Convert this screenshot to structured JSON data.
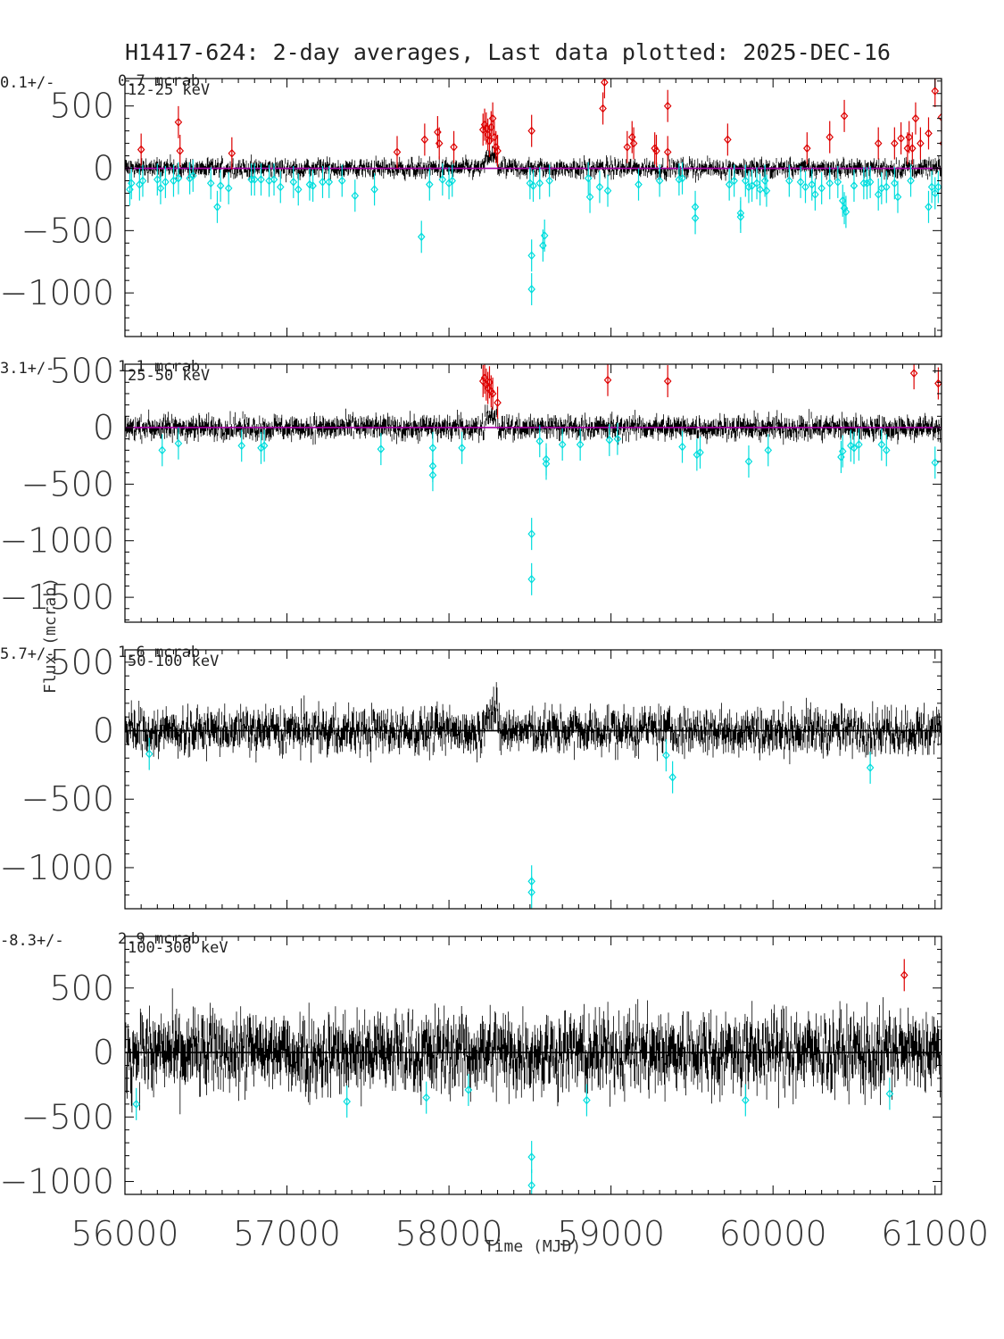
{
  "title": "H1417-624:  2-day averages,  Last data plotted: 2025-DEC-16",
  "chart_data": {
    "type": "scatter",
    "xlabel": "Time (MJD)",
    "ylabel": "Flux (mcrab)",
    "xlim": [
      56000,
      61040
    ],
    "x_ticks": [
      56000,
      57000,
      58000,
      59000,
      60000,
      61000
    ],
    "colors": {
      "data": "#000000",
      "high_outlier": "#dd0000",
      "low_outlier": "#00dddd",
      "mean_line": "#aa00aa"
    },
    "panels": [
      {
        "band": "12-25 keV",
        "mean_text": "0.1+/-",
        "err_text": "0.7 mcrab",
        "ylim": [
          -1350,
          720
        ],
        "y_ticks": [
          -1000,
          -500,
          0,
          500
        ],
        "mean_line": true,
        "noise": 40,
        "err": 35,
        "flare": {
          "x": [
            58220,
            58300
          ],
          "level": 90
        },
        "high_outliers": [
          [
            56100,
            150
          ],
          [
            56330,
            370
          ],
          [
            56340,
            140
          ],
          [
            56660,
            120
          ],
          [
            57680,
            130
          ],
          [
            57850,
            230
          ],
          [
            57930,
            290
          ],
          [
            57940,
            200
          ],
          [
            58030,
            170
          ],
          [
            58210,
            310
          ],
          [
            58220,
            350
          ],
          [
            58230,
            320
          ],
          [
            58240,
            270
          ],
          [
            58250,
            220
          ],
          [
            58260,
            330
          ],
          [
            58270,
            400
          ],
          [
            58280,
            250
          ],
          [
            58290,
            170
          ],
          [
            58300,
            140
          ],
          [
            58510,
            300
          ],
          [
            58950,
            480
          ],
          [
            58960,
            690
          ],
          [
            59100,
            170
          ],
          [
            59130,
            250
          ],
          [
            59140,
            200
          ],
          [
            59270,
            160
          ],
          [
            59280,
            140
          ],
          [
            59350,
            500
          ],
          [
            59350,
            130
          ],
          [
            59720,
            230
          ],
          [
            60210,
            160
          ],
          [
            60350,
            250
          ],
          [
            60440,
            420
          ],
          [
            60650,
            200
          ],
          [
            60750,
            200
          ],
          [
            60790,
            240
          ],
          [
            60830,
            160
          ],
          [
            60840,
            250
          ],
          [
            60860,
            160
          ],
          [
            60880,
            400
          ],
          [
            60910,
            200
          ],
          [
            60960,
            280
          ],
          [
            61000,
            620
          ],
          [
            61040,
            410
          ],
          [
            61050,
            200
          ]
        ],
        "low_outliers": [
          [
            56030,
            -170
          ],
          [
            56040,
            -120
          ],
          [
            56090,
            -130
          ],
          [
            56110,
            -100
          ],
          [
            56200,
            -90
          ],
          [
            56220,
            -160
          ],
          [
            56250,
            -110
          ],
          [
            56300,
            -100
          ],
          [
            56330,
            -80
          ],
          [
            56400,
            -80
          ],
          [
            56420,
            -60
          ],
          [
            56530,
            -120
          ],
          [
            56570,
            -310
          ],
          [
            56590,
            -140
          ],
          [
            56640,
            -160
          ],
          [
            56780,
            -90
          ],
          [
            56800,
            -90
          ],
          [
            56840,
            -90
          ],
          [
            56890,
            -100
          ],
          [
            56920,
            -90
          ],
          [
            56960,
            -150
          ],
          [
            57040,
            -110
          ],
          [
            57070,
            -170
          ],
          [
            57140,
            -130
          ],
          [
            57160,
            -140
          ],
          [
            57220,
            -110
          ],
          [
            57260,
            -110
          ],
          [
            57340,
            -100
          ],
          [
            57420,
            -220
          ],
          [
            57540,
            -170
          ],
          [
            57830,
            -550
          ],
          [
            57880,
            -130
          ],
          [
            57960,
            -90
          ],
          [
            58000,
            -120
          ],
          [
            58020,
            -100
          ],
          [
            58500,
            -120
          ],
          [
            58510,
            -700
          ],
          [
            58510,
            -970
          ],
          [
            58520,
            -140
          ],
          [
            58560,
            -120
          ],
          [
            58580,
            -620
          ],
          [
            58590,
            -540
          ],
          [
            58620,
            -100
          ],
          [
            58860,
            -80
          ],
          [
            58870,
            -230
          ],
          [
            58930,
            -150
          ],
          [
            58980,
            -180
          ],
          [
            59170,
            -130
          ],
          [
            59300,
            -100
          ],
          [
            59420,
            -90
          ],
          [
            59440,
            -80
          ],
          [
            59520,
            -310
          ],
          [
            59520,
            -400
          ],
          [
            59730,
            -130
          ],
          [
            59760,
            -100
          ],
          [
            59800,
            -390
          ],
          [
            59800,
            -360
          ],
          [
            59830,
            -100
          ],
          [
            59850,
            -150
          ],
          [
            59870,
            -140
          ],
          [
            59900,
            -120
          ],
          [
            59920,
            -170
          ],
          [
            59950,
            -100
          ],
          [
            59960,
            -180
          ],
          [
            60100,
            -100
          ],
          [
            60170,
            -110
          ],
          [
            60200,
            -150
          ],
          [
            60240,
            -130
          ],
          [
            60260,
            -210
          ],
          [
            60300,
            -160
          ],
          [
            60350,
            -120
          ],
          [
            60400,
            -110
          ],
          [
            60430,
            -260
          ],
          [
            60440,
            -320
          ],
          [
            60450,
            -350
          ],
          [
            60500,
            -140
          ],
          [
            60560,
            -120
          ],
          [
            60580,
            -120
          ],
          [
            60600,
            -110
          ],
          [
            60650,
            -210
          ],
          [
            60670,
            -160
          ],
          [
            60700,
            -150
          ],
          [
            60750,
            -120
          ],
          [
            60770,
            -230
          ],
          [
            60850,
            -100
          ],
          [
            60960,
            -310
          ],
          [
            60980,
            -150
          ],
          [
            61000,
            -200
          ],
          [
            61020,
            -150
          ]
        ]
      },
      {
        "band": "25-50 keV",
        "mean_text": "3.1+/-",
        "err_text": "1.1 mcrab",
        "ylim": [
          -1720,
          560
        ],
        "y_ticks": [
          -1500,
          -1000,
          -500,
          0,
          500
        ],
        "mean_line": true,
        "noise": 55,
        "err": 50,
        "flare": {
          "x": [
            58220,
            58300
          ],
          "level": 100
        },
        "high_outliers": [
          [
            58210,
            410
          ],
          [
            58220,
            440
          ],
          [
            58230,
            380
          ],
          [
            58240,
            350
          ],
          [
            58250,
            400
          ],
          [
            58260,
            320
          ],
          [
            58270,
            300
          ],
          [
            58300,
            220
          ],
          [
            58980,
            420
          ],
          [
            59350,
            410
          ],
          [
            60870,
            480
          ],
          [
            61020,
            390
          ]
        ],
        "low_outliers": [
          [
            56230,
            -200
          ],
          [
            56330,
            -140
          ],
          [
            56720,
            -160
          ],
          [
            56840,
            -180
          ],
          [
            56860,
            -160
          ],
          [
            57580,
            -190
          ],
          [
            57900,
            -180
          ],
          [
            57900,
            -340
          ],
          [
            57900,
            -420
          ],
          [
            58080,
            -180
          ],
          [
            58510,
            -940
          ],
          [
            58510,
            -1340
          ],
          [
            58560,
            -120
          ],
          [
            58600,
            -280
          ],
          [
            58600,
            -320
          ],
          [
            58700,
            -150
          ],
          [
            58810,
            -150
          ],
          [
            58990,
            -110
          ],
          [
            59040,
            -100
          ],
          [
            59440,
            -170
          ],
          [
            59530,
            -240
          ],
          [
            59550,
            -220
          ],
          [
            59850,
            -300
          ],
          [
            59970,
            -200
          ],
          [
            60420,
            -260
          ],
          [
            60430,
            -210
          ],
          [
            60480,
            -160
          ],
          [
            60500,
            -180
          ],
          [
            60530,
            -150
          ],
          [
            60670,
            -150
          ],
          [
            60700,
            -200
          ],
          [
            61000,
            -310
          ],
          [
            61060,
            -140
          ]
        ]
      },
      {
        "band": "50-100 keV",
        "mean_text": "5.7+/-",
        "err_text": "1.6 mcrab",
        "ylim": [
          -1300,
          590
        ],
        "y_ticks": [
          -1000,
          -500,
          0,
          500
        ],
        "mean_line": false,
        "noise": 90,
        "err": 70,
        "flare": {
          "x": [
            58220,
            58300
          ],
          "level": 150
        },
        "high_outliers": [],
        "low_outliers": [
          [
            56150,
            -170
          ],
          [
            58510,
            -1100
          ],
          [
            58510,
            -1180
          ],
          [
            59340,
            -180
          ],
          [
            59380,
            -340
          ],
          [
            60600,
            -270
          ]
        ]
      },
      {
        "band": "100-300 keV",
        "mean_text": "-8.3+/-",
        "err_text": "2.9 mcrab",
        "ylim": [
          -1100,
          900
        ],
        "y_ticks": [
          -1000,
          -500,
          0,
          500
        ],
        "mean_line": false,
        "noise": 170,
        "err": 130,
        "flare": null,
        "high_outliers": [
          [
            60810,
            600
          ]
        ],
        "low_outliers": [
          [
            56070,
            -400
          ],
          [
            57370,
            -380
          ],
          [
            57860,
            -350
          ],
          [
            58120,
            -290
          ],
          [
            58510,
            -810
          ],
          [
            58510,
            -1030
          ],
          [
            58850,
            -370
          ],
          [
            59830,
            -370
          ],
          [
            60720,
            -320
          ]
        ]
      }
    ]
  }
}
